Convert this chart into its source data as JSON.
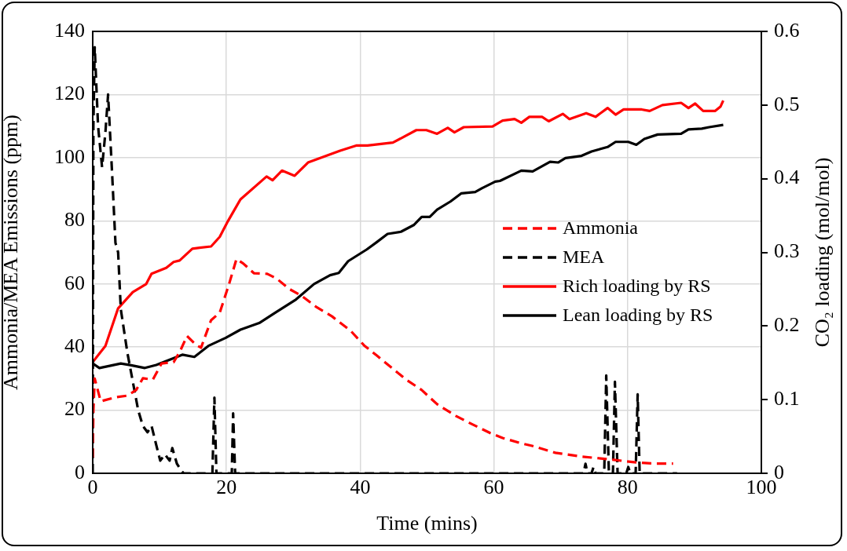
{
  "chart_data": {
    "type": "line",
    "xlabel": "Time (mins)",
    "ylabel": "Ammonia/MEA Emissions (ppm)",
    "y2label": "CO₂ loading (mol/mol)",
    "xlim": [
      0,
      100
    ],
    "xticks": [
      0,
      20,
      40,
      60,
      80,
      100
    ],
    "ylim": [
      0,
      140
    ],
    "yticks": [
      0,
      20,
      40,
      60,
      80,
      100,
      120,
      140
    ],
    "y2lim": [
      0,
      0.6
    ],
    "y2ticks": [
      0,
      0.1,
      0.2,
      0.3,
      0.4,
      0.5,
      0.6
    ],
    "grid": true,
    "legend": "right",
    "marker": "none",
    "series": [
      {
        "name": "Ammonia",
        "color": "#ff0000",
        "line_style": "dashed",
        "x": [
          0,
          0.1,
          0.3,
          1.2,
          3.4,
          5.2,
          6.5,
          7.5,
          9.0,
          10.3,
          12.1,
          13.0,
          14.1,
          15.4,
          16.2,
          17.7,
          19.0,
          20.4,
          21.5,
          22.5,
          24.1,
          26.1,
          27.5,
          29.4,
          31.2,
          33.5,
          35.8,
          38.6,
          40.6,
          42.5,
          44.9,
          46.8,
          49.2,
          51.5,
          54.3,
          56.6,
          59.4,
          61.3,
          64.1,
          65.7,
          69.2,
          73.1,
          77.0,
          81.0,
          84.0,
          86.8
        ],
        "values": [
          5,
          20,
          30,
          22.8,
          24.1,
          24.6,
          26.4,
          30.1,
          29.7,
          34.8,
          35.2,
          38.4,
          43.5,
          40.8,
          39.8,
          48.5,
          50.9,
          60,
          67.9,
          66.5,
          63.4,
          63.2,
          61.7,
          58.4,
          56.3,
          52.6,
          49.7,
          45.1,
          40.5,
          37.3,
          33.1,
          29.8,
          26.4,
          21.9,
          18.2,
          15.7,
          12.8,
          11.2,
          9.5,
          8.7,
          6.5,
          5.3,
          4.5,
          3.5,
          3.1,
          3.1
        ]
      },
      {
        "name": "MEA",
        "color": "#000000",
        "line_style": "dashed",
        "x": [
          0,
          0.1,
          0.3,
          0.8,
          1.4,
          1.9,
          2.3,
          2.9,
          3.4,
          3.8,
          4.2,
          5.2,
          6.0,
          6.8,
          7.5,
          8.2,
          8.8,
          9.5,
          10.1,
          10.8,
          11.5,
          11.9,
          12.6,
          13.2,
          13.6,
          17.9,
          18.2,
          18.5,
          20.8,
          21.0,
          21.3,
          73.4,
          73.7,
          74.0,
          74.6,
          74.9,
          75.2,
          76.5,
          76.8,
          77.2,
          77.8,
          78.1,
          78.5,
          79.8,
          80.1,
          80.4,
          81.2,
          81.5,
          81.8,
          87.4
        ],
        "values": [
          0,
          110,
          135,
          110,
          97,
          108,
          120,
          95,
          73,
          70,
          52,
          38,
          29,
          20,
          15,
          13,
          15,
          9,
          4,
          6,
          4,
          8,
          3,
          1,
          0,
          0,
          24,
          0,
          0,
          19,
          0,
          0,
          3,
          0,
          0,
          2,
          0,
          0,
          31,
          0,
          0,
          29,
          0,
          0,
          2,
          0,
          0,
          25,
          0,
          0
        ]
      },
      {
        "name": "Rich loading by RS",
        "color": "#ff0000",
        "line_style": "solid",
        "axis": "y2",
        "x": [
          0,
          1.9,
          3.8,
          6.0,
          8.0,
          8.8,
          11.0,
          12.1,
          13.0,
          14.9,
          17.7,
          19.0,
          20.2,
          22.1,
          26.0,
          26.9,
          28.3,
          30.2,
          32.2,
          37.0,
          39.4,
          41.1,
          44.9,
          48.4,
          49.9,
          51.5,
          53.1,
          54.1,
          55.5,
          59.8,
          61.3,
          63.1,
          64.1,
          65.3,
          67.2,
          68.2,
          70.3,
          71.3,
          73.8,
          75.2,
          77.0,
          78.2,
          79.4,
          82.1,
          83.3,
          85.2,
          88.0,
          89.1,
          90.1,
          91.3,
          93.1,
          93.9,
          94.3
        ],
        "values": [
          0.151,
          0.173,
          0.224,
          0.246,
          0.257,
          0.271,
          0.279,
          0.287,
          0.289,
          0.305,
          0.308,
          0.321,
          0.342,
          0.372,
          0.403,
          0.398,
          0.411,
          0.404,
          0.422,
          0.438,
          0.445,
          0.445,
          0.449,
          0.466,
          0.466,
          0.461,
          0.469,
          0.463,
          0.47,
          0.471,
          0.479,
          0.481,
          0.476,
          0.484,
          0.484,
          0.478,
          0.488,
          0.481,
          0.489,
          0.484,
          0.496,
          0.487,
          0.494,
          0.494,
          0.492,
          0.5,
          0.503,
          0.496,
          0.502,
          0.492,
          0.492,
          0.498,
          0.506
        ]
      },
      {
        "name": "Lean loading by RS",
        "color": "#000000",
        "line_style": "solid",
        "axis": "y2",
        "x": [
          0,
          1.0,
          4.2,
          5.6,
          7.8,
          9.5,
          13.4,
          15.2,
          17.3,
          19.9,
          22.1,
          24.9,
          27.3,
          30.4,
          33.1,
          35.5,
          36.8,
          38.2,
          41.0,
          42.5,
          44.1,
          46.1,
          48.0,
          49.2,
          50.4,
          51.5,
          53.5,
          55.1,
          57.2,
          58.2,
          60.2,
          60.9,
          64.1,
          65.8,
          68.4,
          69.6,
          70.7,
          73.1,
          74.6,
          77.0,
          78.2,
          80.1,
          81.3,
          82.5,
          84.5,
          88.0,
          89.1,
          91.1,
          92.2,
          94.3
        ],
        "values": [
          0.149,
          0.143,
          0.149,
          0.147,
          0.143,
          0.147,
          0.161,
          0.158,
          0.173,
          0.184,
          0.195,
          0.204,
          0.218,
          0.236,
          0.257,
          0.269,
          0.272,
          0.288,
          0.304,
          0.314,
          0.325,
          0.328,
          0.337,
          0.348,
          0.348,
          0.358,
          0.369,
          0.38,
          0.382,
          0.387,
          0.396,
          0.397,
          0.411,
          0.41,
          0.423,
          0.422,
          0.428,
          0.431,
          0.437,
          0.443,
          0.45,
          0.45,
          0.446,
          0.454,
          0.46,
          0.461,
          0.467,
          0.468,
          0.47,
          0.473
        ]
      }
    ]
  }
}
